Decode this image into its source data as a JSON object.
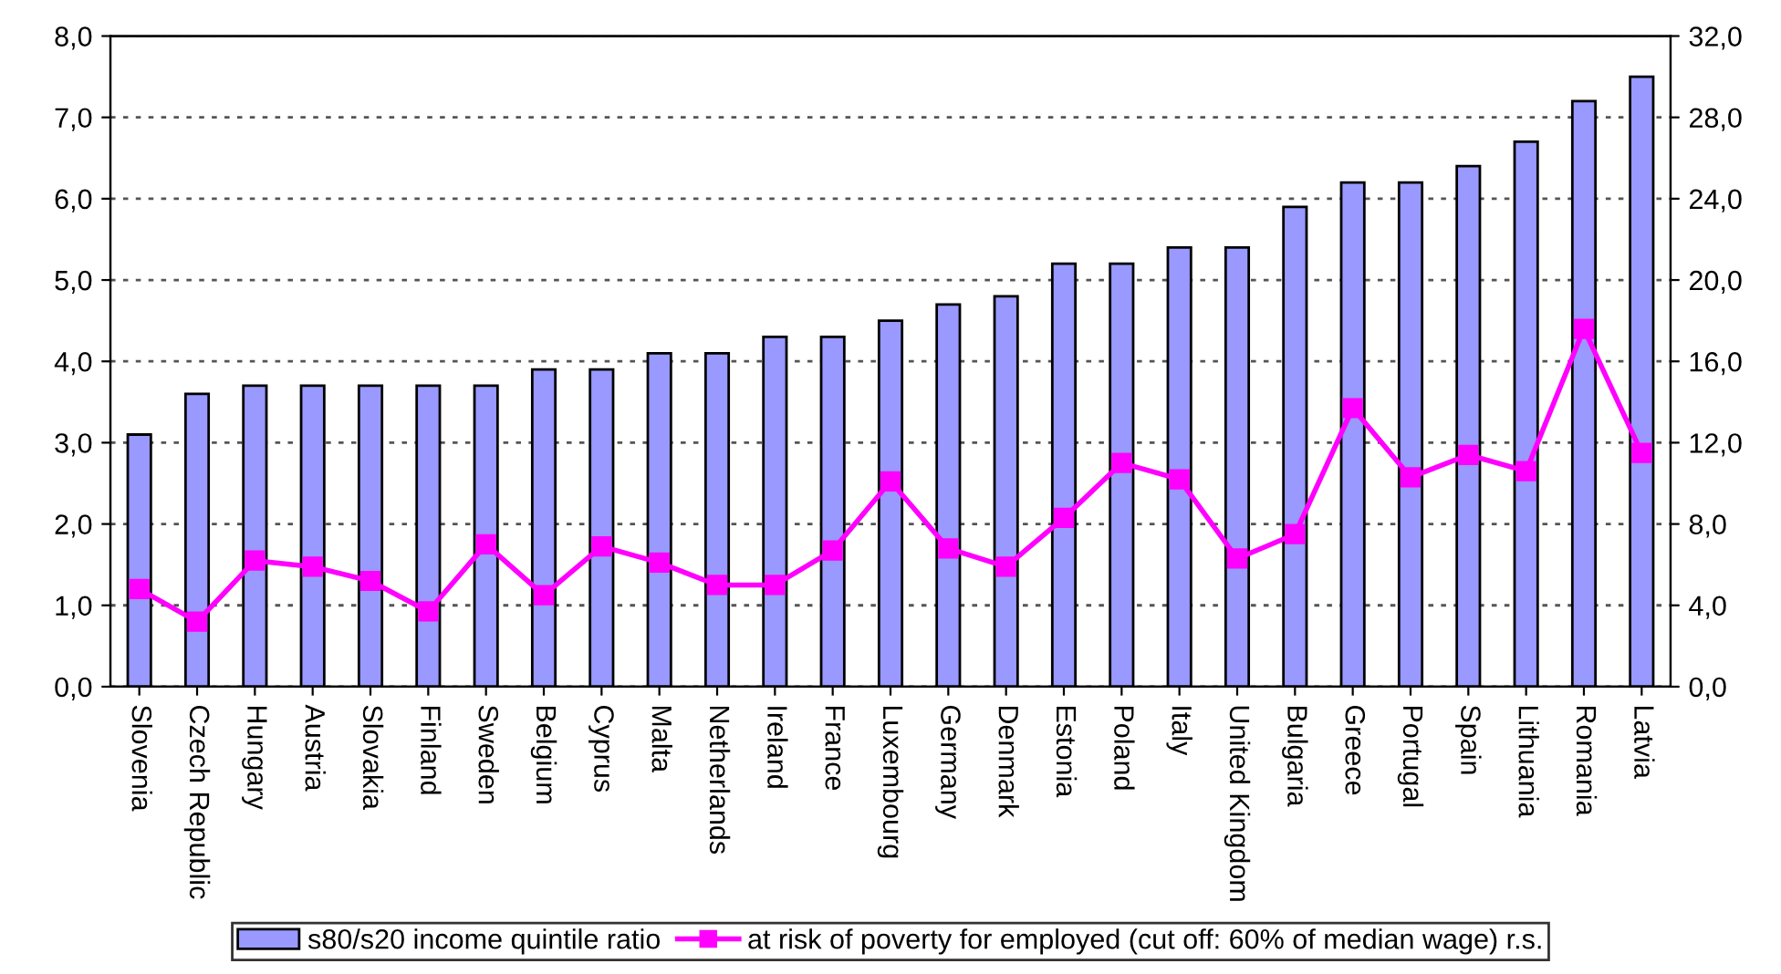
{
  "chart_data": {
    "type": "bar",
    "categories": [
      "Slovenia",
      "Czech Republic",
      "Hungary",
      "Austria",
      "Slovakia",
      "Finland",
      "Sweden",
      "Belgium",
      "Cyprus",
      "Malta",
      "Netherlands",
      "Ireland",
      "France",
      "Luxembourg",
      "Germany",
      "Denmark",
      "Estonia",
      "Poland",
      "Italy",
      "United Kingdom",
      "Bulgaria",
      "Greece",
      "Portugal",
      "Spain",
      "Lithuania",
      "Romania",
      "Latvia"
    ],
    "series": [
      {
        "name": "s80/s20 income quintile ratio",
        "color": "#9999ff",
        "values": [
          3.1,
          3.6,
          3.7,
          3.7,
          3.7,
          3.7,
          3.7,
          3.9,
          3.9,
          4.1,
          4.1,
          4.3,
          4.3,
          4.5,
          4.7,
          4.8,
          5.2,
          5.2,
          5.4,
          5.4,
          5.9,
          6.2,
          6.2,
          6.4,
          6.7,
          7.2,
          7.5
        ]
      },
      {
        "name": "at risk of poverty for employed (cut off: 60% of median wage) r.s.",
        "type": "line",
        "axis": "y2",
        "color": "#ff00ff",
        "marker": "square",
        "values": [
          4.8,
          3.2,
          6.2,
          5.9,
          5.2,
          3.7,
          7.0,
          4.5,
          6.9,
          6.1,
          5.0,
          5.0,
          6.7,
          10.1,
          6.8,
          5.9,
          8.3,
          11.0,
          10.2,
          6.3,
          7.5,
          13.7,
          10.3,
          11.4,
          10.6,
          17.6,
          11.5
        ]
      }
    ],
    "ylim": [
      0,
      8
    ],
    "yticks": [
      {
        "value": 0,
        "label": "0,0"
      },
      {
        "value": 1,
        "label": "1,0"
      },
      {
        "value": 2,
        "label": "2,0"
      },
      {
        "value": 3,
        "label": "3,0"
      },
      {
        "value": 4,
        "label": "4,0"
      },
      {
        "value": 5,
        "label": "5,0"
      },
      {
        "value": 6,
        "label": "6,0"
      },
      {
        "value": 7,
        "label": "7,0"
      },
      {
        "value": 8,
        "label": "8,0"
      }
    ],
    "y2lim": [
      0,
      32
    ],
    "y2ticks": [
      {
        "value": 0,
        "label": "0,0"
      },
      {
        "value": 4,
        "label": "4,0"
      },
      {
        "value": 8,
        "label": "8,0"
      },
      {
        "value": 12,
        "label": "12,0"
      },
      {
        "value": 16,
        "label": "16,0"
      },
      {
        "value": 20,
        "label": "20,0"
      },
      {
        "value": 24,
        "label": "24,0"
      },
      {
        "value": 28,
        "label": "28,0"
      },
      {
        "value": 32,
        "label": "32,0"
      }
    ],
    "grid": "y",
    "legend": "bottom"
  }
}
